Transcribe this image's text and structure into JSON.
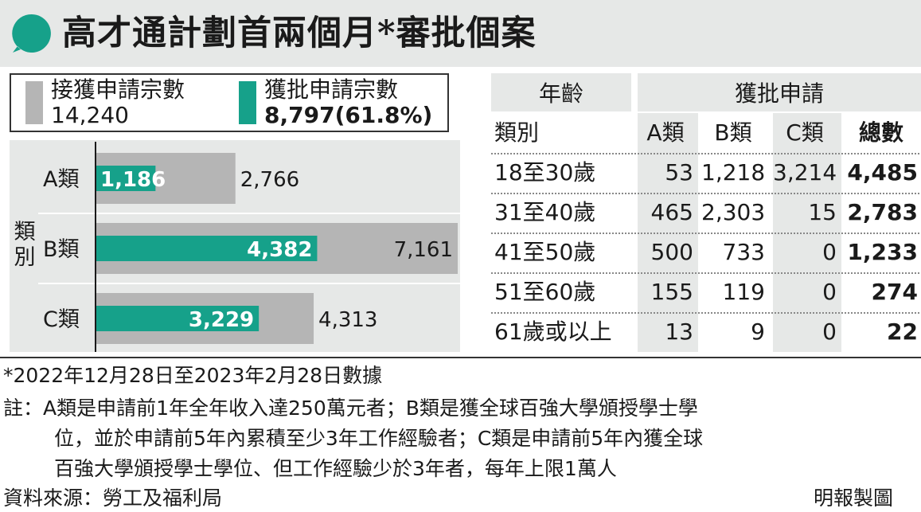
{
  "title": "高才通計劃首兩個月*審批個案",
  "legend": {
    "received_label": "接獲申請宗數",
    "received_value": "14,240",
    "approved_label": "獲批申請宗數",
    "approved_value": "8,797",
    "approved_pct": "(61.8%)"
  },
  "colors": {
    "received": "#b5b5b5",
    "approved": "#16a18a",
    "band": "#e6e8e7"
  },
  "chart_data": {
    "type": "bar",
    "orientation": "horizontal",
    "ylabel": "類別",
    "categories": [
      "A類",
      "B類",
      "C類"
    ],
    "series": [
      {
        "name": "接獲申請宗數",
        "values": [
          2766,
          7161,
          4313
        ],
        "labels": [
          "2,766",
          "7,161",
          "4,313"
        ]
      },
      {
        "name": "獲批申請宗數",
        "values": [
          1186,
          4382,
          3229
        ],
        "labels": [
          "1,186",
          "4,382",
          "3,229"
        ]
      }
    ],
    "xlim": [
      0,
      7161
    ]
  },
  "table": {
    "corner_top": "年齡",
    "corner_bottom": "類別",
    "group_header": "獲批申請",
    "columns": [
      "A類",
      "B類",
      "C類",
      "總數"
    ],
    "rows": [
      {
        "age": "18至30歲",
        "a": "53",
        "b": "1,218",
        "c": "3,214",
        "total": "4,485"
      },
      {
        "age": "31至40歲",
        "a": "465",
        "b": "2,303",
        "c": "15",
        "total": "2,783"
      },
      {
        "age": "41至50歲",
        "a": "500",
        "b": "733",
        "c": "0",
        "total": "1,233"
      },
      {
        "age": "51至60歲",
        "a": "155",
        "b": "119",
        "c": "0",
        "total": "274"
      },
      {
        "age": "61歲或以上",
        "a": "13",
        "b": "9",
        "c": "0",
        "total": "22"
      }
    ]
  },
  "notes": {
    "asterisk": "*2022年12月28日至2023年2月28日數據",
    "remark_line1": "註：A類是申請前1年全年收入達250萬元者；B類是獲全球百強大學頒授學士學",
    "remark_line2": "位，並於申請前5年內累積至少3年工作經驗者；C類是申請前5年內獲全球",
    "remark_line3": "百強大學頒授學士學位、但工作經驗少於3年者，每年上限1萬人",
    "source": "資料來源：勞工及福利局",
    "credit": "明報製圖"
  }
}
